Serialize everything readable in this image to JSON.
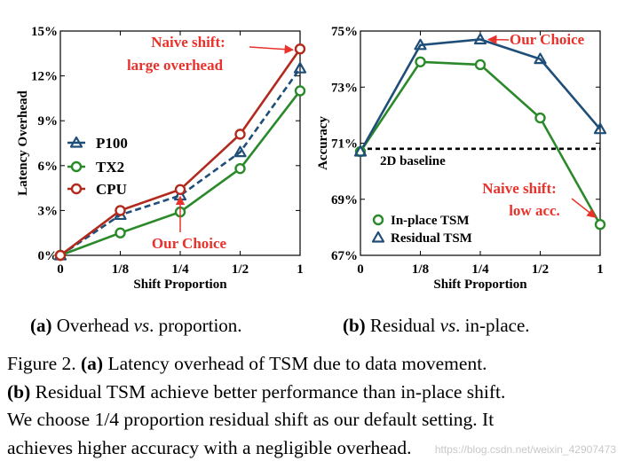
{
  "chart_data": [
    {
      "type": "line",
      "panel": "a",
      "title": "",
      "xlabel": "Shift Proportion",
      "ylabel": "Latency Overhead",
      "categories": [
        "0",
        "1/8",
        "1/4",
        "1/2",
        "1"
      ],
      "yticks": [
        "0%",
        "3%",
        "6%",
        "9%",
        "12%",
        "15%"
      ],
      "ylim": [
        0,
        15
      ],
      "legend_position": "center-left",
      "series": [
        {
          "name": "P100",
          "values": [
            0,
            2.7,
            4.0,
            6.9,
            12.5
          ],
          "color": "#1f4e79",
          "marker": "triangle",
          "dashed": true
        },
        {
          "name": "TX2",
          "values": [
            0,
            1.5,
            2.9,
            5.8,
            11.0
          ],
          "color": "#2a8a2a",
          "marker": "circle",
          "dashed": false
        },
        {
          "name": "CPU",
          "values": [
            0,
            3.0,
            4.4,
            8.1,
            13.8
          ],
          "color": "#b22a1e",
          "marker": "circle",
          "dashed": false
        }
      ],
      "annotations": [
        {
          "text_lines": [
            "Naive shift:",
            "large overhead"
          ],
          "color": "#e8322b",
          "points_to": {
            "x_index": 4,
            "value": 13.8
          }
        },
        {
          "text": "Our Choice",
          "color": "#e8322b",
          "points_to": {
            "x_index": 2,
            "value": 4.4
          }
        }
      ]
    },
    {
      "type": "line",
      "panel": "b",
      "title": "",
      "xlabel": "Shift Proportion",
      "ylabel": "Accuracy",
      "categories": [
        "0",
        "1/8",
        "1/4",
        "1/2",
        "1"
      ],
      "yticks": [
        "67%",
        "69%",
        "71%",
        "73%",
        "75%"
      ],
      "ylim": [
        67,
        75
      ],
      "legend_position": "bottom-left",
      "series": [
        {
          "name": "In-place TSM",
          "values": [
            70.7,
            73.9,
            73.8,
            71.9,
            68.1
          ],
          "color": "#2a8a2a",
          "marker": "circle"
        },
        {
          "name": "Residual TSM",
          "values": [
            70.7,
            74.5,
            74.7,
            74.0,
            71.5
          ],
          "color": "#1f4e79",
          "marker": "triangle"
        }
      ],
      "baseline": {
        "label": "2D baseline",
        "value": 70.8
      },
      "annotations": [
        {
          "text": "Our Choice",
          "color": "#e8322b",
          "points_to": {
            "x_index": 2,
            "value": 74.7
          }
        },
        {
          "text_lines": [
            "Naive shift:",
            "low acc."
          ],
          "color": "#e8322b",
          "points_to": {
            "x_index": 4,
            "value": 68.1
          }
        }
      ]
    }
  ],
  "subcaptions": {
    "a": {
      "tag": "(a)",
      "pre": " Overhead ",
      "vs": "vs",
      "post": ". proportion."
    },
    "b": {
      "tag": "(b)",
      "pre": " Residual ",
      "vs": "vs",
      "post": ". in-place."
    }
  },
  "caption": {
    "line1_pre": "Figure 2. ",
    "line1_tag": "(a)",
    "line1_post": " Latency overhead of TSM due to data movement.",
    "line2_tag": "(b)",
    "line2_post": " Residual TSM achieve better performance than in-place shift.",
    "line3": "We choose 1/4 proportion residual shift as our default setting. It",
    "line4": "achieves higher accuracy with a negligible overhead."
  },
  "watermark": "https://blog.csdn.net/weixin_42907473"
}
